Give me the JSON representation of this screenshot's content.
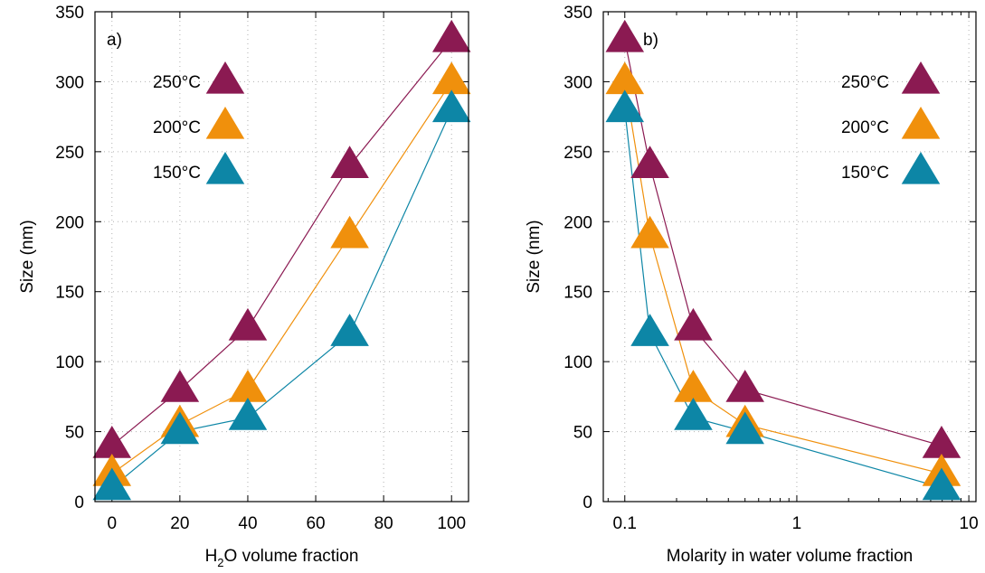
{
  "chart_data": [
    {
      "type": "line",
      "panel_label": "a)",
      "xlabel": "H2O volume fraction",
      "xlabel_main": "H",
      "xlabel_sub": "2",
      "xlabel_rest": "O volume fraction",
      "ylabel": "Size (nm)",
      "xlim": [
        -5,
        105
      ],
      "ylim": [
        0,
        350
      ],
      "xscale": "linear",
      "xticks": [
        0,
        20,
        40,
        60,
        80,
        100
      ],
      "xtick_labels": [
        "0",
        "20",
        "40",
        "60",
        "80",
        "100"
      ],
      "yticks": [
        0,
        50,
        100,
        150,
        200,
        250,
        300,
        350
      ],
      "ytick_labels": [
        "0",
        "50",
        "100",
        "150",
        "200",
        "250",
        "300",
        "350"
      ],
      "grid": true,
      "legend_position": "top-left",
      "series": [
        {
          "name": "250°C",
          "color": "#8b1a52",
          "x": [
            0,
            20,
            40,
            70,
            100
          ],
          "y": [
            40,
            80,
            124,
            240,
            330
          ]
        },
        {
          "name": "200°C",
          "color": "#f0900c",
          "x": [
            0,
            20,
            40,
            70,
            100
          ],
          "y": [
            20,
            55,
            80,
            190,
            300
          ]
        },
        {
          "name": "150°C",
          "color": "#0d86a6",
          "x": [
            0,
            20,
            40,
            70,
            100
          ],
          "y": [
            10,
            50,
            60,
            120,
            280
          ]
        }
      ]
    },
    {
      "type": "line",
      "panel_label": "b)",
      "xlabel": "Molarity in water volume fraction",
      "ylabel": "Size (nm)",
      "xlim": [
        0.075,
        11
      ],
      "ylim": [
        0,
        350
      ],
      "xscale": "log",
      "xticks": [
        0.1,
        1,
        10
      ],
      "xtick_labels": [
        "0.1",
        "1",
        "10"
      ],
      "yticks": [
        0,
        50,
        100,
        150,
        200,
        250,
        300,
        350
      ],
      "ytick_labels": [
        "0",
        "50",
        "100",
        "150",
        "200",
        "250",
        "300",
        "350"
      ],
      "grid": true,
      "legend_position": "top-right",
      "series": [
        {
          "name": "250°C",
          "color": "#8b1a52",
          "x": [
            0.1,
            0.14,
            0.25,
            0.5,
            6.94
          ],
          "y": [
            330,
            240,
            124,
            80,
            40
          ]
        },
        {
          "name": "200°C",
          "color": "#f0900c",
          "x": [
            0.1,
            0.14,
            0.25,
            0.5,
            6.94
          ],
          "y": [
            300,
            190,
            80,
            55,
            20
          ]
        },
        {
          "name": "150°C",
          "color": "#0d86a6",
          "x": [
            0.1,
            0.14,
            0.25,
            0.5,
            6.94
          ],
          "y": [
            280,
            120,
            60,
            50,
            10
          ]
        }
      ]
    }
  ]
}
